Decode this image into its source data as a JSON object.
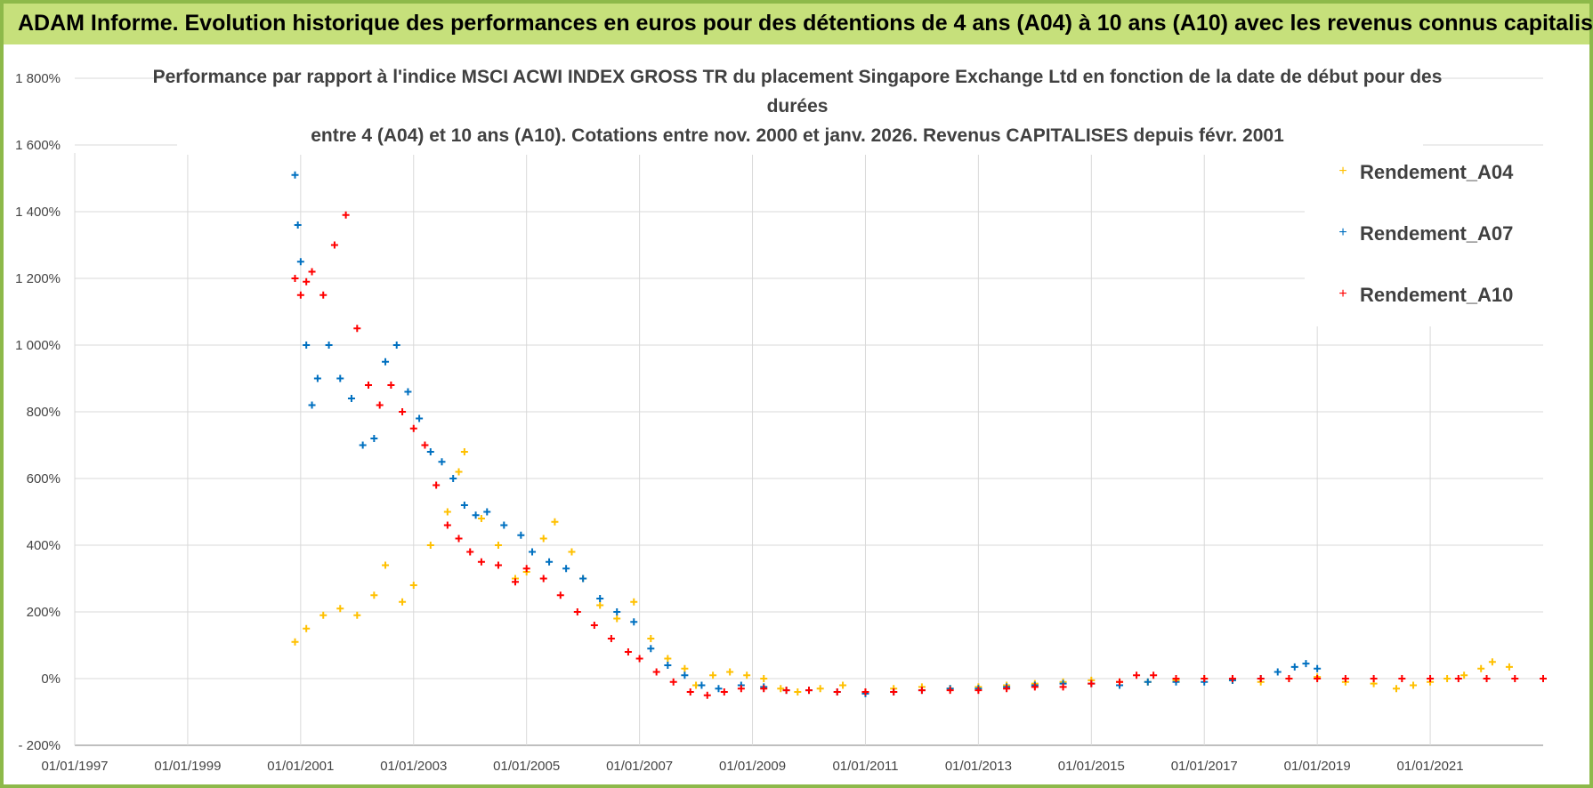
{
  "page": {
    "title": "ADAM Informe. Evolution historique des performances en euros pour des détentions de 4 ans (A04) à 10 ans (A10) avec les revenus connus capitalisés"
  },
  "colors": {
    "header": "#C6E07B",
    "border": "#8DB94A",
    "A04": "#FFC000",
    "A07": "#0070C0",
    "A10": "#FF0000",
    "grid": "#D9D9D9"
  },
  "chart_data": {
    "type": "scatter",
    "title_lines": [
      "Performance par rapport à l'indice MSCI ACWI INDEX GROSS TR  du placement Singapore Exchange Ltd en fonction de la date de début pour des",
      "durées",
      "entre 4 (A04) et 10 ans (A10).  Cotations entre nov. 2000 et janv. 2026. Revenus CAPITALISES depuis févr. 2001"
    ],
    "xlabel": "",
    "ylabel": "",
    "x_unit": "year",
    "xlim": [
      1997.0,
      2023.0
    ],
    "ylim": [
      -200,
      1800
    ],
    "y_ticks": [
      -200,
      0,
      200,
      400,
      600,
      800,
      1000,
      1200,
      1400,
      1600,
      1800
    ],
    "y_tick_labels": [
      "- 200%",
      "0%",
      "200%",
      "400%",
      "600%",
      "800%",
      "1 000%",
      "1 200%",
      "1 400%",
      "1 600%",
      "1 800%"
    ],
    "x_ticks": [
      1997,
      1999,
      2001,
      2003,
      2005,
      2007,
      2009,
      2011,
      2013,
      2015,
      2017,
      2019,
      2021
    ],
    "x_tick_labels": [
      "01/01/1997",
      "01/01/1999",
      "01/01/2001",
      "01/01/2003",
      "01/01/2005",
      "01/01/2007",
      "01/01/2009",
      "01/01/2011",
      "01/01/2013",
      "01/01/2015",
      "01/01/2017",
      "01/01/2019",
      "01/01/2021"
    ],
    "grid": true,
    "legend_position": "top-right",
    "marker": "+",
    "series": [
      {
        "name": "Rendement_A04",
        "color": "#FFC000",
        "x": [
          2000.9,
          2001.1,
          2001.4,
          2001.7,
          2002.0,
          2002.3,
          2002.5,
          2002.8,
          2003.0,
          2003.3,
          2003.6,
          2003.8,
          2003.9,
          2004.2,
          2004.5,
          2004.8,
          2005.0,
          2005.3,
          2005.5,
          2005.8,
          2006.0,
          2006.3,
          2006.6,
          2006.9,
          2007.2,
          2007.5,
          2007.8,
          2008.0,
          2008.3,
          2008.6,
          2008.9,
          2009.2,
          2009.5,
          2009.8,
          2010.2,
          2010.6,
          2011.0,
          2011.5,
          2012.0,
          2012.5,
          2013.0,
          2013.5,
          2014.0,
          2014.5,
          2015.0,
          2015.5,
          2016.0,
          2016.5,
          2017.0,
          2017.5,
          2018.0,
          2018.5,
          2019.0,
          2019.5,
          2020.0,
          2020.4,
          2020.7,
          2021.0,
          2021.3,
          2021.6,
          2021.9,
          2022.1,
          2022.4
        ],
        "y": [
          110,
          150,
          190,
          210,
          190,
          250,
          340,
          230,
          280,
          400,
          500,
          620,
          680,
          480,
          400,
          300,
          320,
          420,
          470,
          380,
          300,
          220,
          180,
          230,
          120,
          60,
          30,
          -20,
          10,
          20,
          10,
          0,
          -30,
          -40,
          -30,
          -20,
          -40,
          -30,
          -25,
          -30,
          -25,
          -20,
          -15,
          -10,
          -5,
          -10,
          -10,
          -5,
          0,
          -5,
          -10,
          0,
          5,
          -10,
          -15,
          -30,
          -20,
          -10,
          0,
          10,
          30,
          50,
          35
        ]
      },
      {
        "name": "Rendement_A07",
        "color": "#0070C0",
        "x": [
          2000.9,
          2000.95,
          2001.0,
          2001.1,
          2001.2,
          2001.3,
          2001.5,
          2001.7,
          2001.9,
          2002.1,
          2002.3,
          2002.5,
          2002.7,
          2002.9,
          2003.1,
          2003.3,
          2003.5,
          2003.7,
          2003.9,
          2004.1,
          2004.3,
          2004.6,
          2004.9,
          2005.1,
          2005.4,
          2005.7,
          2006.0,
          2006.3,
          2006.6,
          2006.9,
          2007.2,
          2007.5,
          2007.8,
          2008.1,
          2008.4,
          2008.8,
          2009.2,
          2009.6,
          2010.0,
          2010.5,
          2011.0,
          2011.5,
          2012.0,
          2012.5,
          2013.0,
          2013.5,
          2014.0,
          2014.5,
          2015.0,
          2015.5,
          2016.0,
          2016.5,
          2017.0,
          2017.5,
          2018.0,
          2018.3,
          2018.6,
          2018.8,
          2019.0
        ],
        "y": [
          1510,
          1360,
          1250,
          1000,
          820,
          900,
          1000,
          900,
          840,
          700,
          720,
          950,
          1000,
          860,
          780,
          680,
          650,
          600,
          520,
          490,
          500,
          460,
          430,
          380,
          350,
          330,
          300,
          240,
          200,
          170,
          90,
          40,
          10,
          -20,
          -30,
          -20,
          -25,
          -35,
          -35,
          -40,
          -45,
          -40,
          -35,
          -30,
          -30,
          -25,
          -20,
          -15,
          -15,
          -20,
          -10,
          -10,
          -10,
          -5,
          0,
          20,
          35,
          45,
          30
        ]
      },
      {
        "name": "Rendement_A10",
        "color": "#FF0000",
        "x": [
          2000.9,
          2001.0,
          2001.1,
          2001.2,
          2001.4,
          2001.6,
          2001.8,
          2002.0,
          2002.2,
          2002.4,
          2002.6,
          2002.8,
          2003.0,
          2003.2,
          2003.4,
          2003.6,
          2003.8,
          2004.0,
          2004.2,
          2004.5,
          2004.8,
          2005.0,
          2005.3,
          2005.6,
          2005.9,
          2006.2,
          2006.5,
          2006.8,
          2007.0,
          2007.3,
          2007.6,
          2007.9,
          2008.2,
          2008.5,
          2008.8,
          2009.2,
          2009.6,
          2010.0,
          2010.5,
          2011.0,
          2011.5,
          2012.0,
          2012.5,
          2013.0,
          2013.5,
          2014.0,
          2014.5,
          2015.0,
          2015.5,
          2015.8,
          2016.1,
          2016.5,
          2017.0,
          2017.5,
          2018.0,
          2018.5,
          2019.0,
          2019.5,
          2020.0,
          2020.5,
          2021.0,
          2021.5,
          2022.0,
          2022.5,
          2023.0
        ],
        "y": [
          1200,
          1150,
          1190,
          1220,
          1150,
          1300,
          1390,
          1050,
          880,
          820,
          880,
          800,
          750,
          700,
          580,
          460,
          420,
          380,
          350,
          340,
          290,
          330,
          300,
          250,
          200,
          160,
          120,
          80,
          60,
          20,
          -10,
          -40,
          -50,
          -40,
          -30,
          -30,
          -35,
          -35,
          -40,
          -40,
          -40,
          -35,
          -35,
          -35,
          -30,
          -25,
          -25,
          -15,
          -10,
          10,
          10,
          0,
          0,
          0,
          0,
          0,
          0,
          0,
          0,
          0,
          0,
          0,
          0,
          0,
          0
        ]
      }
    ],
    "legend": [
      "Rendement_A04",
      "Rendement_A07",
      "Rendement_A10"
    ]
  }
}
